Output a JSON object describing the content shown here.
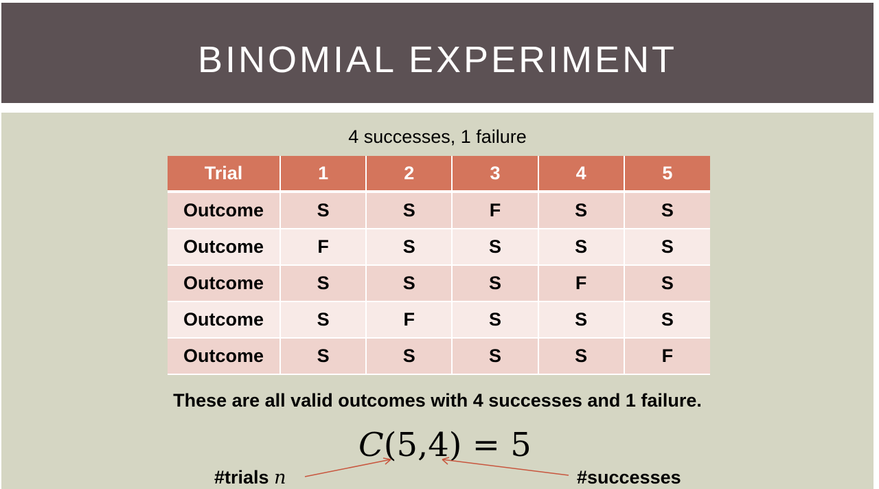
{
  "title": "BINOMIAL EXPERIMENT",
  "subtitle": "4 successes, 1 failure",
  "table": {
    "header": [
      "Trial",
      "1",
      "2",
      "3",
      "4",
      "5"
    ],
    "rows": [
      {
        "label": "Outcome",
        "cells": [
          "S",
          "S",
          "F",
          "S",
          "S"
        ]
      },
      {
        "label": "Outcome",
        "cells": [
          "F",
          "S",
          "S",
          "S",
          "S"
        ]
      },
      {
        "label": "Outcome",
        "cells": [
          "S",
          "S",
          "S",
          "F",
          "S"
        ]
      },
      {
        "label": "Outcome",
        "cells": [
          "S",
          "F",
          "S",
          "S",
          "S"
        ]
      },
      {
        "label": "Outcome",
        "cells": [
          "S",
          "S",
          "S",
          "S",
          "F"
        ]
      }
    ]
  },
  "statement": "These are all valid outcomes with 4 successes and 1 failure.",
  "formula": {
    "func": "C",
    "args": "(5,4)",
    "equals": " = 5"
  },
  "annotations": {
    "trials_label": "#trials ",
    "trials_var": "n",
    "successes_label": "#successes"
  },
  "colors": {
    "title_bg": "#5c5154",
    "content_bg": "#d5d6c3",
    "header_bg": "#d4755c",
    "failure": "#f01e10",
    "arrow": "#c8553d"
  }
}
